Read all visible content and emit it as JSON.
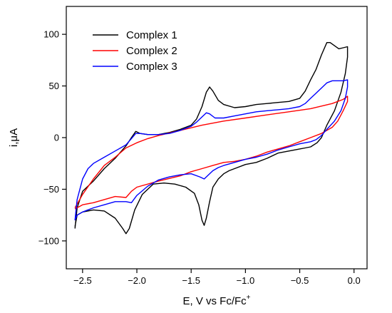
{
  "chart_data": {
    "type": "line",
    "xlabel": "E, V vs Fc/Fc",
    "xlabel_sup": "+",
    "ylabel": "i,μA",
    "xlim": [
      -2.65,
      0.12
    ],
    "ylim": [
      -127,
      127
    ],
    "xticks": [
      -2.5,
      -2.0,
      -1.5,
      -1.0,
      -0.5,
      0.0
    ],
    "xtick_labels": [
      "−2.5",
      "−2.0",
      "−1.5",
      "−1.0",
      "−0.5",
      "0.0"
    ],
    "yticks": [
      -100,
      -50,
      0,
      50,
      100
    ],
    "ytick_labels": [
      "−100",
      "−50",
      "0",
      "50",
      "100"
    ],
    "grid": false,
    "legend_position": "top-left",
    "series": [
      {
        "name": "Complex 1",
        "color": "#000000",
        "points": [
          [
            -2.57,
            -88
          ],
          [
            -2.55,
            -68
          ],
          [
            -2.5,
            -52
          ],
          [
            -2.4,
            -42
          ],
          [
            -2.3,
            -30
          ],
          [
            -2.2,
            -20
          ],
          [
            -2.1,
            -8
          ],
          [
            -2.05,
            0
          ],
          [
            -2.01,
            6
          ],
          [
            -1.97,
            4
          ],
          [
            -1.9,
            3
          ],
          [
            -1.8,
            3
          ],
          [
            -1.7,
            5
          ],
          [
            -1.6,
            8
          ],
          [
            -1.5,
            12
          ],
          [
            -1.45,
            18
          ],
          [
            -1.4,
            30
          ],
          [
            -1.36,
            44
          ],
          [
            -1.33,
            49
          ],
          [
            -1.3,
            45
          ],
          [
            -1.25,
            36
          ],
          [
            -1.2,
            32
          ],
          [
            -1.1,
            29
          ],
          [
            -1.0,
            30
          ],
          [
            -0.9,
            32
          ],
          [
            -0.8,
            33
          ],
          [
            -0.7,
            34
          ],
          [
            -0.6,
            35
          ],
          [
            -0.5,
            38
          ],
          [
            -0.45,
            45
          ],
          [
            -0.4,
            56
          ],
          [
            -0.35,
            66
          ],
          [
            -0.3,
            80
          ],
          [
            -0.25,
            92
          ],
          [
            -0.22,
            92
          ],
          [
            -0.18,
            89
          ],
          [
            -0.14,
            86
          ],
          [
            -0.1,
            87
          ],
          [
            -0.06,
            88
          ],
          [
            -0.06,
            78
          ],
          [
            -0.08,
            62
          ],
          [
            -0.12,
            44
          ],
          [
            -0.18,
            26
          ],
          [
            -0.25,
            12
          ],
          [
            -0.3,
            0
          ],
          [
            -0.34,
            -5
          ],
          [
            -0.4,
            -9
          ],
          [
            -0.45,
            -10
          ],
          [
            -0.5,
            -11
          ],
          [
            -0.6,
            -13
          ],
          [
            -0.7,
            -15
          ],
          [
            -0.8,
            -20
          ],
          [
            -0.9,
            -24
          ],
          [
            -1.0,
            -26
          ],
          [
            -1.1,
            -30
          ],
          [
            -1.15,
            -32
          ],
          [
            -1.2,
            -35
          ],
          [
            -1.25,
            -40
          ],
          [
            -1.3,
            -48
          ],
          [
            -1.33,
            -62
          ],
          [
            -1.36,
            -78
          ],
          [
            -1.38,
            -85
          ],
          [
            -1.4,
            -80
          ],
          [
            -1.43,
            -65
          ],
          [
            -1.47,
            -54
          ],
          [
            -1.55,
            -48
          ],
          [
            -1.65,
            -45
          ],
          [
            -1.75,
            -44
          ],
          [
            -1.85,
            -45
          ],
          [
            -1.95,
            -55
          ],
          [
            -2.02,
            -70
          ],
          [
            -2.07,
            -88
          ],
          [
            -2.1,
            -93
          ],
          [
            -2.13,
            -88
          ],
          [
            -2.2,
            -78
          ],
          [
            -2.3,
            -71
          ],
          [
            -2.4,
            -70
          ],
          [
            -2.5,
            -72
          ],
          [
            -2.55,
            -75
          ],
          [
            -2.57,
            -86
          ]
        ]
      },
      {
        "name": "Complex 2",
        "color": "#ff0000",
        "points": [
          [
            -2.57,
            -68
          ],
          [
            -2.5,
            -55
          ],
          [
            -2.4,
            -40
          ],
          [
            -2.3,
            -27
          ],
          [
            -2.2,
            -19
          ],
          [
            -2.1,
            -10
          ],
          [
            -2.0,
            -5
          ],
          [
            -1.9,
            -1
          ],
          [
            -1.8,
            2
          ],
          [
            -1.6,
            7
          ],
          [
            -1.4,
            12
          ],
          [
            -1.2,
            16
          ],
          [
            -1.0,
            19
          ],
          [
            -0.8,
            22
          ],
          [
            -0.6,
            25
          ],
          [
            -0.4,
            28
          ],
          [
            -0.2,
            33
          ],
          [
            -0.1,
            37
          ],
          [
            -0.06,
            40
          ],
          [
            -0.06,
            35
          ],
          [
            -0.1,
            26
          ],
          [
            -0.15,
            16
          ],
          [
            -0.2,
            10
          ],
          [
            -0.3,
            4
          ],
          [
            -0.4,
            0
          ],
          [
            -0.5,
            -4
          ],
          [
            -0.6,
            -8
          ],
          [
            -0.7,
            -11
          ],
          [
            -0.8,
            -14
          ],
          [
            -0.9,
            -18
          ],
          [
            -1.0,
            -21
          ],
          [
            -1.1,
            -23
          ],
          [
            -1.2,
            -24
          ],
          [
            -1.3,
            -27
          ],
          [
            -1.4,
            -30
          ],
          [
            -1.5,
            -33
          ],
          [
            -1.6,
            -37
          ],
          [
            -1.8,
            -42
          ],
          [
            -2.0,
            -48
          ],
          [
            -2.05,
            -52
          ],
          [
            -2.1,
            -58
          ],
          [
            -2.2,
            -57
          ],
          [
            -2.3,
            -60
          ],
          [
            -2.4,
            -63
          ],
          [
            -2.5,
            -65
          ],
          [
            -2.57,
            -69
          ]
        ]
      },
      {
        "name": "Complex 3",
        "color": "#0000ff",
        "points": [
          [
            -2.57,
            -80
          ],
          [
            -2.55,
            -60
          ],
          [
            -2.5,
            -40
          ],
          [
            -2.45,
            -30
          ],
          [
            -2.4,
            -25
          ],
          [
            -2.3,
            -19
          ],
          [
            -2.2,
            -13
          ],
          [
            -2.1,
            -7
          ],
          [
            -2.05,
            -1
          ],
          [
            -2.01,
            4
          ],
          [
            -1.97,
            4
          ],
          [
            -1.9,
            3
          ],
          [
            -1.8,
            3
          ],
          [
            -1.7,
            4
          ],
          [
            -1.6,
            7
          ],
          [
            -1.5,
            11
          ],
          [
            -1.45,
            15
          ],
          [
            -1.4,
            20
          ],
          [
            -1.36,
            24
          ],
          [
            -1.33,
            23
          ],
          [
            -1.28,
            19
          ],
          [
            -1.2,
            19
          ],
          [
            -1.1,
            21
          ],
          [
            -1.0,
            23
          ],
          [
            -0.9,
            25
          ],
          [
            -0.8,
            26
          ],
          [
            -0.7,
            27
          ],
          [
            -0.6,
            28
          ],
          [
            -0.5,
            30
          ],
          [
            -0.45,
            33
          ],
          [
            -0.4,
            38
          ],
          [
            -0.35,
            43
          ],
          [
            -0.3,
            48
          ],
          [
            -0.25,
            53
          ],
          [
            -0.2,
            55
          ],
          [
            -0.15,
            55
          ],
          [
            -0.1,
            55
          ],
          [
            -0.06,
            56
          ],
          [
            -0.06,
            49
          ],
          [
            -0.08,
            38
          ],
          [
            -0.12,
            26
          ],
          [
            -0.18,
            16
          ],
          [
            -0.25,
            8
          ],
          [
            -0.3,
            2
          ],
          [
            -0.35,
            -2
          ],
          [
            -0.4,
            -4
          ],
          [
            -0.5,
            -6
          ],
          [
            -0.6,
            -9
          ],
          [
            -0.7,
            -12
          ],
          [
            -0.8,
            -16
          ],
          [
            -0.9,
            -19
          ],
          [
            -1.0,
            -21
          ],
          [
            -1.1,
            -24
          ],
          [
            -1.2,
            -27
          ],
          [
            -1.25,
            -29
          ],
          [
            -1.3,
            -32
          ],
          [
            -1.35,
            -37
          ],
          [
            -1.38,
            -40
          ],
          [
            -1.42,
            -38
          ],
          [
            -1.5,
            -35
          ],
          [
            -1.6,
            -36
          ],
          [
            -1.7,
            -38
          ],
          [
            -1.8,
            -41
          ],
          [
            -1.9,
            -47
          ],
          [
            -2.0,
            -56
          ],
          [
            -2.05,
            -63
          ],
          [
            -2.1,
            -62
          ],
          [
            -2.2,
            -62
          ],
          [
            -2.3,
            -65
          ],
          [
            -2.4,
            -68
          ],
          [
            -2.5,
            -72
          ],
          [
            -2.55,
            -75
          ],
          [
            -2.57,
            -80
          ]
        ]
      }
    ]
  }
}
